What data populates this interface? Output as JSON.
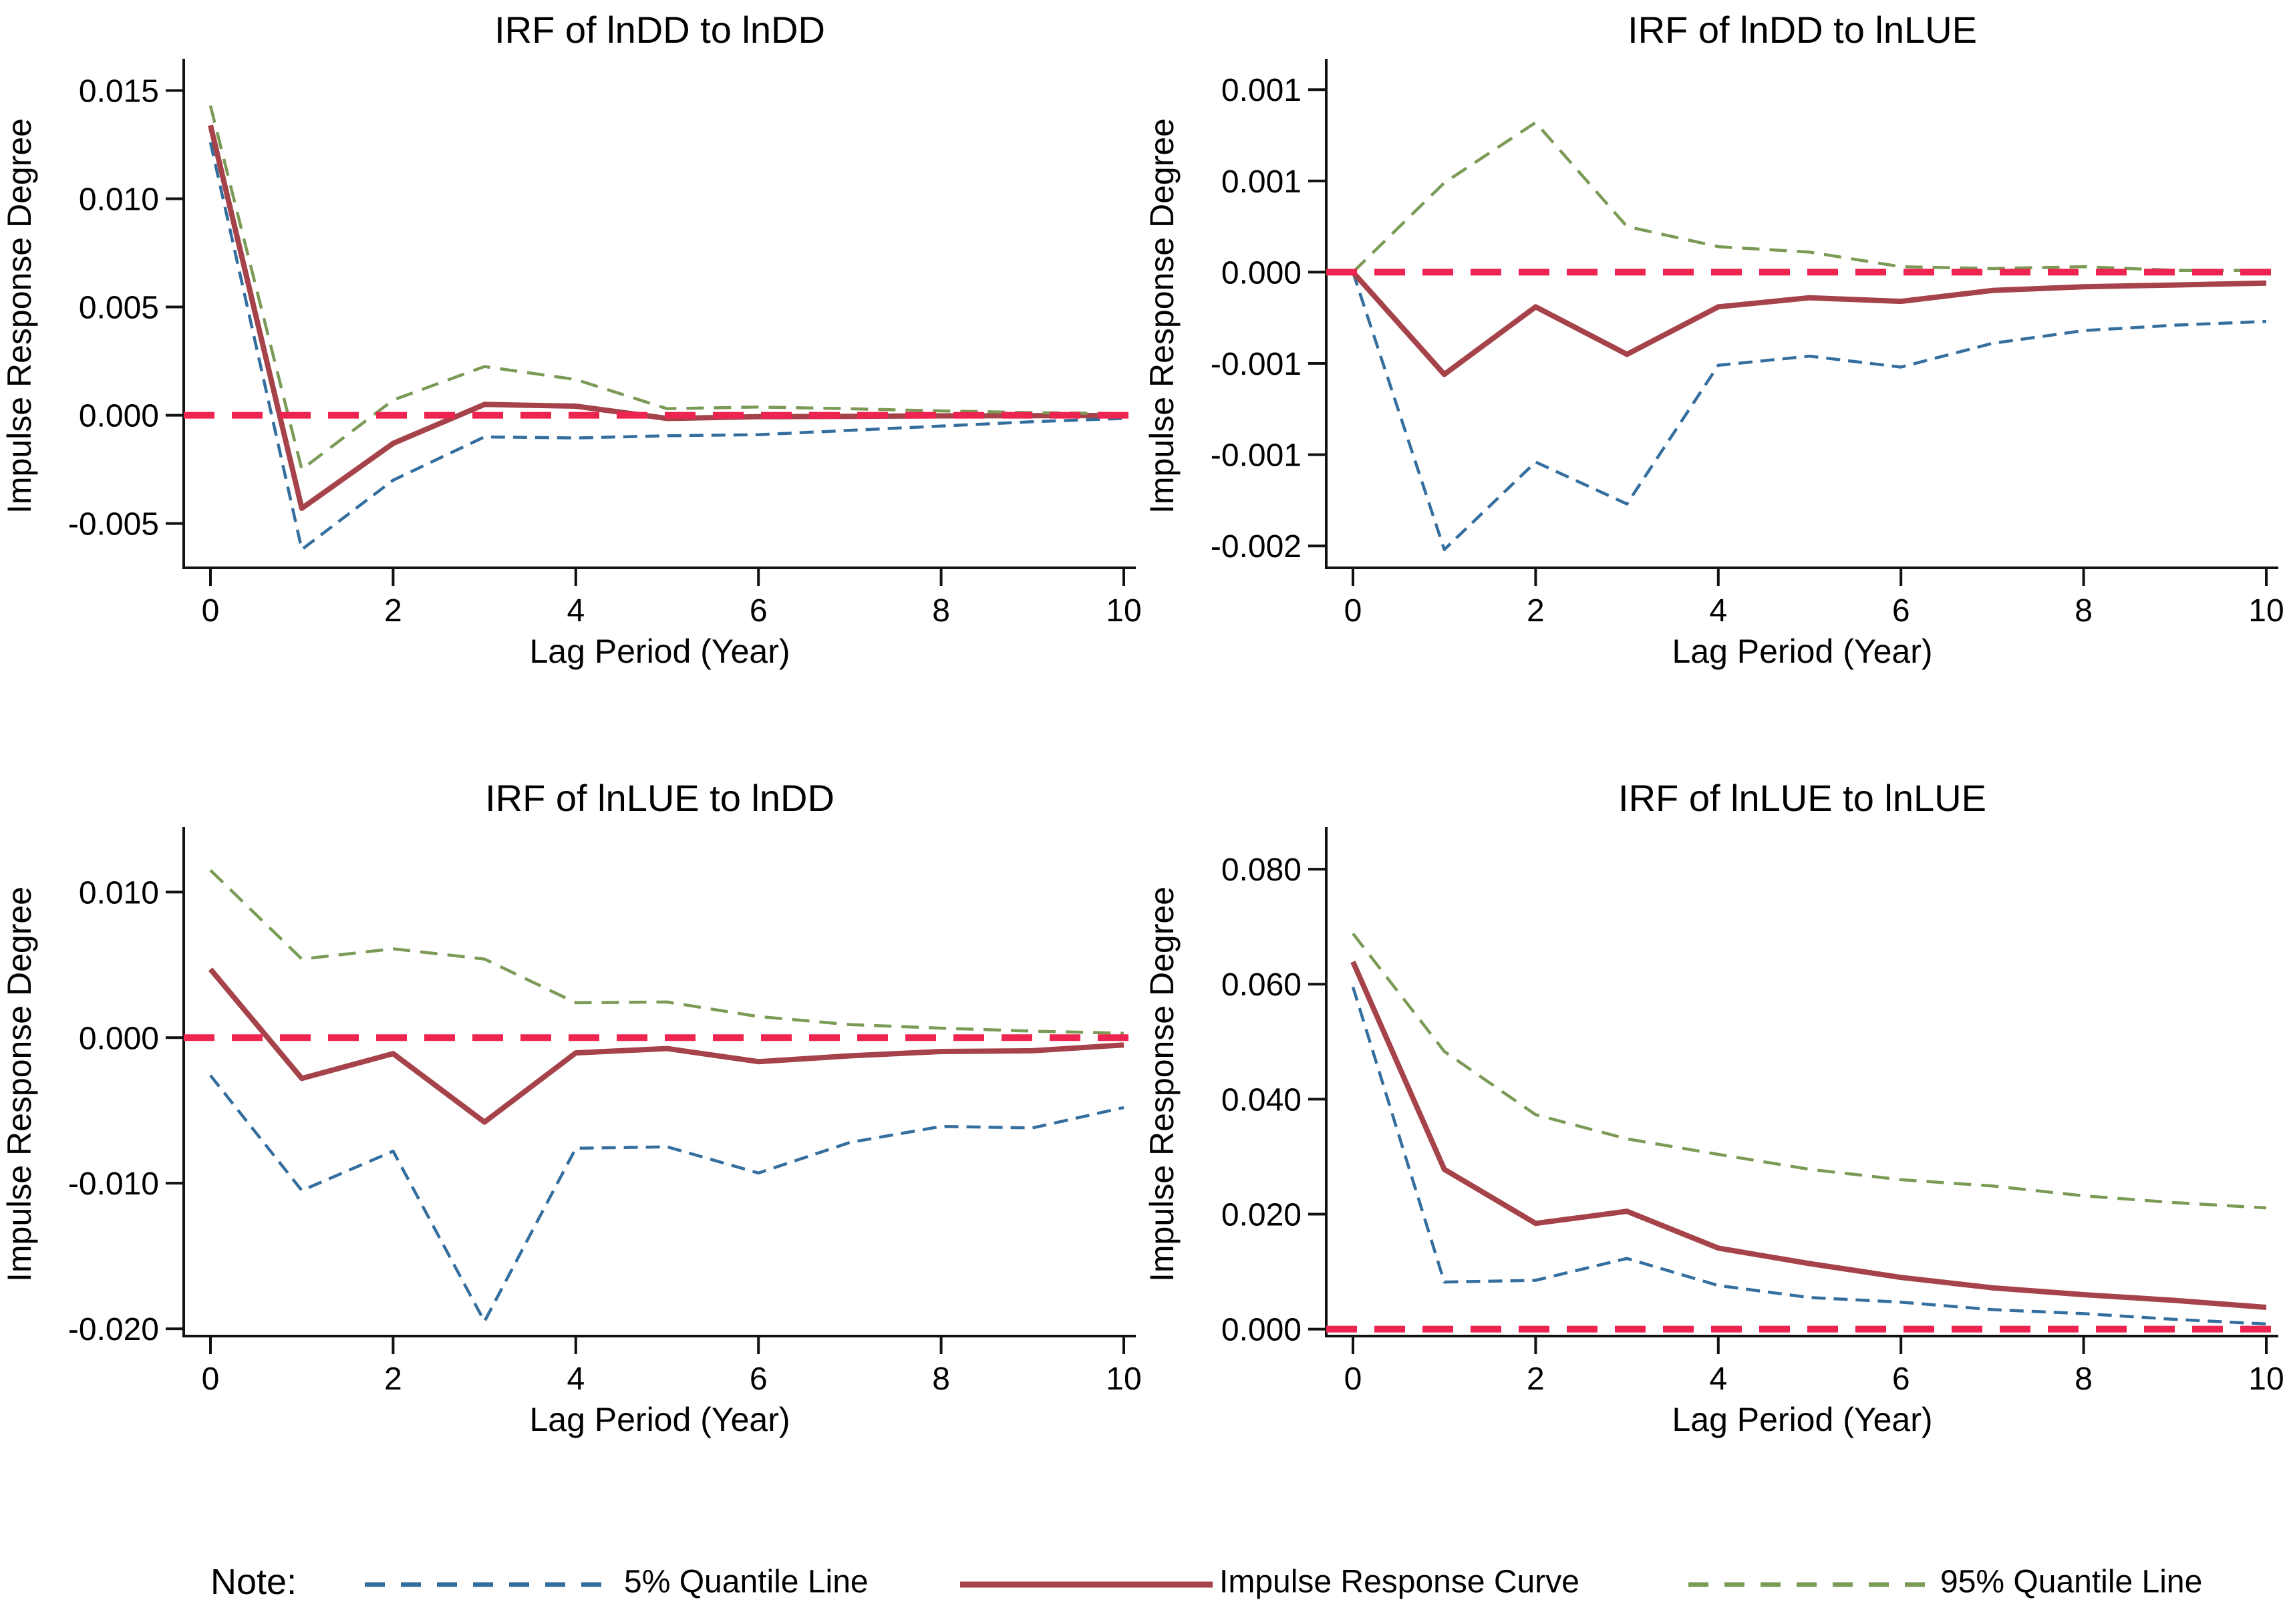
{
  "note": {
    "label": "Note:"
  },
  "legend": {
    "items": [
      {
        "key": "q5",
        "label": "5% Quantile Line",
        "style": "dashed",
        "color": "#336e9e"
      },
      {
        "key": "irf",
        "label": "Impulse Response Curve",
        "style": "solid",
        "color": "#a6424a"
      },
      {
        "key": "q95",
        "label": "95% Quantile Line",
        "style": "dashed",
        "color": "#7a9a55"
      }
    ]
  },
  "style": {
    "colors": {
      "q5": "#336e9e",
      "irf": "#a6424a",
      "q95": "#7a9a55",
      "zero_line": "#ee2450",
      "axis": "#111111",
      "text": "#000000"
    }
  },
  "chart_data": [
    {
      "type": "line",
      "title": "IRF of lnDD to lnDD",
      "xlabel": "Lag Period (Year)",
      "ylabel": "Impulse Response Degree",
      "grid": false,
      "x": [
        0,
        1,
        2,
        3,
        4,
        5,
        6,
        7,
        8,
        9,
        10
      ],
      "xticks": [
        0,
        2,
        4,
        6,
        8,
        10
      ],
      "xlim": [
        -0.29,
        10.13
      ],
      "ylim": [
        -0.00705,
        0.01622
      ],
      "zero_line": 0,
      "yticks": [
        {
          "value": 0.015,
          "label": "0.015"
        },
        {
          "value": 0.01,
          "label": "0.010"
        },
        {
          "value": 0.005,
          "label": "0.005"
        },
        {
          "value": 0.0,
          "label": "0.000"
        },
        {
          "value": -0.005,
          "label": "-0.005"
        }
      ],
      "series": [
        {
          "key": "q5",
          "name": "5% Quantile Line",
          "values": [
            0.0126,
            -0.0062,
            -0.003,
            -0.001,
            -0.00105,
            -0.00095,
            -0.0009,
            -0.0007,
            -0.0005,
            -0.0003,
            -0.00015
          ]
        },
        {
          "key": "irf",
          "name": "Impulse Response Curve",
          "values": [
            0.0134,
            -0.0043,
            -0.0013,
            0.0005,
            0.00042,
            -0.00015,
            -7e-05,
            -5e-05,
            -3e-05,
            -2e-05,
            -1e-05
          ]
        },
        {
          "key": "q95",
          "name": "95% Quantile Line",
          "values": [
            0.0143,
            -0.0025,
            0.0007,
            0.00225,
            0.00165,
            0.0003,
            0.00038,
            0.0003,
            0.0002,
            0.00012,
            8e-05
          ]
        }
      ]
    },
    {
      "type": "line",
      "title": "IRF of lnDD to lnLUE",
      "xlabel": "Lag Period (Year)",
      "ylabel": "Impulse Response Degree",
      "grid": false,
      "x": [
        0,
        1,
        2,
        3,
        4,
        5,
        6,
        7,
        8,
        9,
        10
      ],
      "xticks": [
        0,
        2,
        4,
        6,
        8,
        10
      ],
      "xlim": [
        -0.29,
        10.13
      ],
      "ylim": [
        -0.00162,
        0.00114
      ],
      "zero_line": 0,
      "yticks": [
        {
          "value": 0.001,
          "label": "0.001"
        },
        {
          "value": 0.0005,
          "label": "0.001"
        },
        {
          "value": 0.0,
          "label": "0.000"
        },
        {
          "value": -0.0005,
          "label": "-0.001"
        },
        {
          "value": -0.001,
          "label": "-0.001"
        },
        {
          "value": -0.0015,
          "label": "-0.002"
        }
      ],
      "series": [
        {
          "key": "q5",
          "name": "5% Quantile Line",
          "values": [
            0,
            -0.00152,
            -0.00104,
            -0.00127,
            -0.00051,
            -0.00046,
            -0.00052,
            -0.00039,
            -0.00032,
            -0.00029,
            -0.00027
          ]
        },
        {
          "key": "irf",
          "name": "Impulse Response Curve",
          "values": [
            0,
            -0.00056,
            -0.00019,
            -0.00045,
            -0.00019,
            -0.00014,
            -0.00016,
            -0.0001,
            -8e-05,
            -7e-05,
            -6e-05
          ]
        },
        {
          "key": "q95",
          "name": "95% Quantile Line",
          "values": [
            0,
            0.00049,
            0.00082,
            0.00025,
            0.00014,
            0.00011,
            3e-05,
            2e-05,
            3e-05,
            1e-05,
            1e-05
          ]
        }
      ]
    },
    {
      "type": "line",
      "title": "IRF of lnLUE to lnDD",
      "xlabel": "Lag Period (Year)",
      "ylabel": "Impulse Response Degree",
      "grid": false,
      "x": [
        0,
        1,
        2,
        3,
        4,
        5,
        6,
        7,
        8,
        9,
        10
      ],
      "xticks": [
        0,
        2,
        4,
        6,
        8,
        10
      ],
      "xlim": [
        -0.29,
        10.13
      ],
      "ylim": [
        -0.0205,
        0.0141
      ],
      "zero_line": 0,
      "yticks": [
        {
          "value": 0.01,
          "label": "0.010"
        },
        {
          "value": 0.0,
          "label": "0.000"
        },
        {
          "value": -0.01,
          "label": "-0.010"
        },
        {
          "value": -0.02,
          "label": "-0.020"
        }
      ],
      "series": [
        {
          "key": "q5",
          "name": "5% Quantile Line",
          "values": [
            -0.0026,
            -0.0105,
            -0.0078,
            -0.0195,
            -0.0076,
            -0.0075,
            -0.0093,
            -0.0072,
            -0.0061,
            -0.0062,
            -0.0048
          ]
        },
        {
          "key": "irf",
          "name": "Impulse Response Curve",
          "values": [
            0.0047,
            -0.0028,
            -0.0011,
            -0.0058,
            -0.00105,
            -0.00075,
            -0.00165,
            -0.00125,
            -0.00095,
            -0.0009,
            -0.0005
          ]
        },
        {
          "key": "q95",
          "name": "95% Quantile Line",
          "values": [
            0.0115,
            0.0054,
            0.0061,
            0.0054,
            0.0024,
            0.00245,
            0.00145,
            0.0009,
            0.00065,
            0.00045,
            0.0003
          ]
        }
      ]
    },
    {
      "type": "line",
      "title": "IRF of lnLUE to lnLUE",
      "xlabel": "Lag Period (Year)",
      "ylabel": "Impulse Response Degree",
      "grid": false,
      "x": [
        0,
        1,
        2,
        3,
        4,
        5,
        6,
        7,
        8,
        9,
        10
      ],
      "xticks": [
        0,
        2,
        4,
        6,
        8,
        10
      ],
      "xlim": [
        -0.29,
        10.13
      ],
      "ylim": [
        -0.0012,
        0.0864
      ],
      "zero_line": 0,
      "yticks": [
        {
          "value": 0.08,
          "label": "0.080"
        },
        {
          "value": 0.06,
          "label": "0.060"
        },
        {
          "value": 0.04,
          "label": "0.040"
        },
        {
          "value": 0.02,
          "label": "0.020"
        },
        {
          "value": 0.0,
          "label": "0.000"
        }
      ],
      "series": [
        {
          "key": "q5",
          "name": "5% Quantile Line",
          "values": [
            0.0595,
            0.0082,
            0.0085,
            0.0123,
            0.0076,
            0.0055,
            0.0047,
            0.0034,
            0.0027,
            0.0017,
            0.0009
          ]
        },
        {
          "key": "irf",
          "name": "Impulse Response Curve",
          "values": [
            0.0639,
            0.0278,
            0.0184,
            0.0205,
            0.0141,
            0.0114,
            0.009,
            0.0072,
            0.006,
            0.005,
            0.0038
          ]
        },
        {
          "key": "q95",
          "name": "95% Quantile Line",
          "values": [
            0.0688,
            0.0483,
            0.0373,
            0.0331,
            0.0304,
            0.0278,
            0.026,
            0.0249,
            0.0232,
            0.022,
            0.0211
          ]
        }
      ]
    }
  ]
}
